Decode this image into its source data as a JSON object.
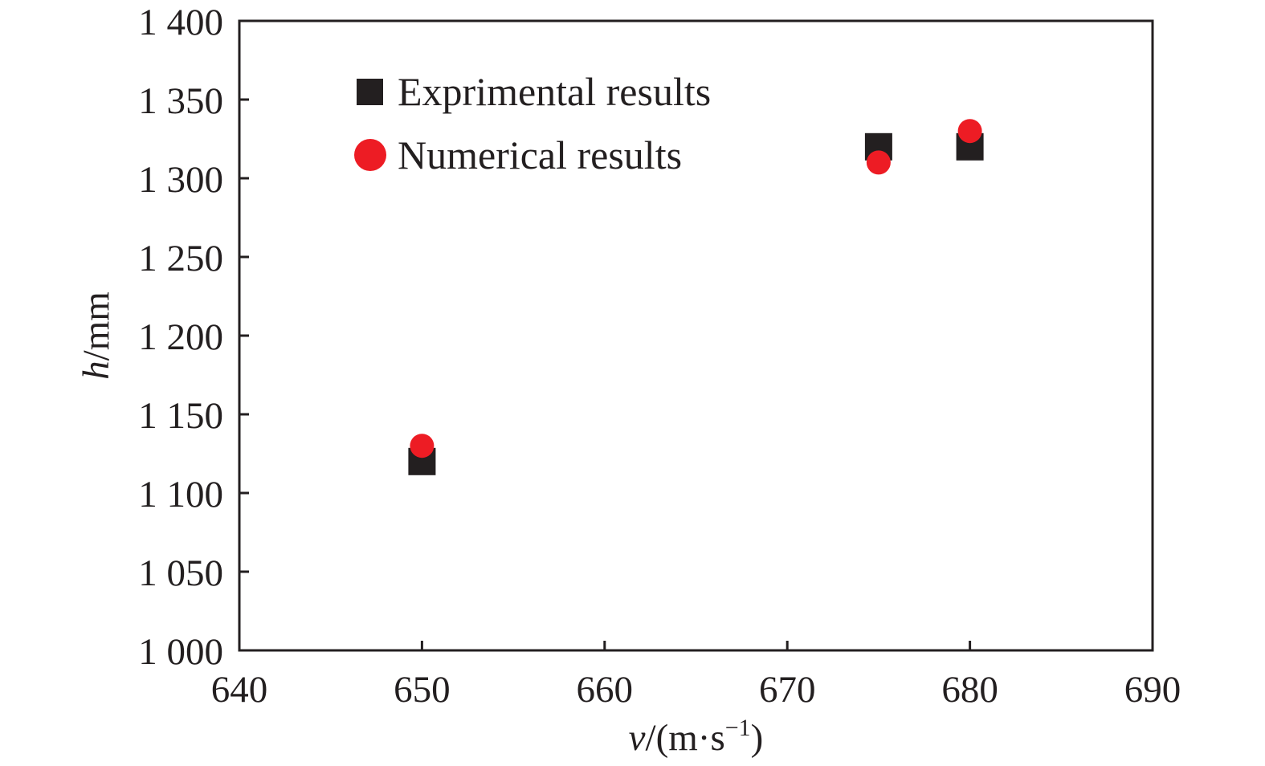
{
  "chart_data": {
    "type": "scatter",
    "title": "",
    "xlabel": {
      "var": "v",
      "rest": "/(m·s",
      "sup": "−1",
      "close": ")"
    },
    "ylabel": {
      "var": "h",
      "rest": "/mm"
    },
    "xlim": [
      640,
      690
    ],
    "ylim": [
      1000,
      1400
    ],
    "x_ticks": [
      640,
      650,
      660,
      670,
      680,
      690
    ],
    "x_tick_labels": [
      "640",
      "650",
      "660",
      "670",
      "680",
      "690"
    ],
    "y_ticks": [
      1000,
      1050,
      1100,
      1150,
      1200,
      1250,
      1300,
      1350,
      1400
    ],
    "y_tick_labels": [
      "1 000",
      "1 050",
      "1 100",
      "1 150",
      "1 200",
      "1 250",
      "1 300",
      "1 350",
      "1 400"
    ],
    "grid": false,
    "legend_position": "top-left",
    "series": [
      {
        "name": "Exprimental results",
        "marker": "square",
        "color": "#231f20",
        "points": [
          {
            "x": 650,
            "y": 1120
          },
          {
            "x": 675,
            "y": 1320
          },
          {
            "x": 680,
            "y": 1320
          }
        ]
      },
      {
        "name": "Numerical results",
        "marker": "circle",
        "color": "#ed1c24",
        "points": [
          {
            "x": 650,
            "y": 1130
          },
          {
            "x": 675,
            "y": 1310
          },
          {
            "x": 680,
            "y": 1330
          }
        ]
      }
    ]
  }
}
